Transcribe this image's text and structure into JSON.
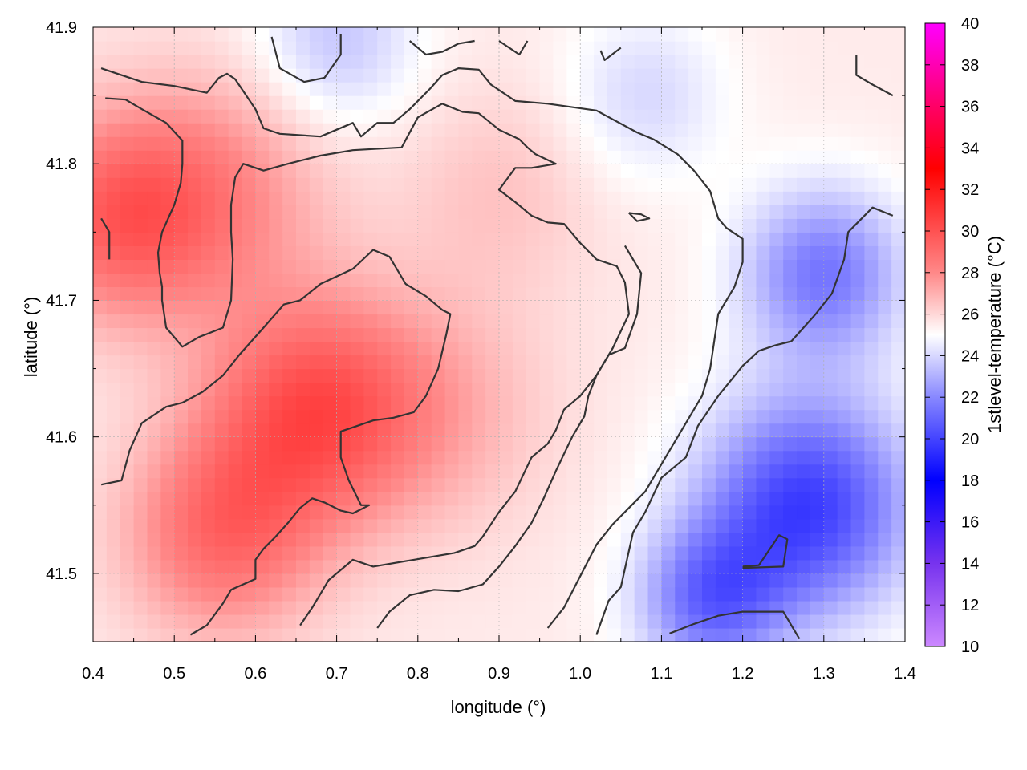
{
  "chart_data": {
    "type": "heatmap",
    "title": "",
    "xlabel": "longitude (°)",
    "ylabel": "latitude (°)",
    "colorbar_label": "1stlevel-temperature (°C)",
    "xlim": [
      0.4,
      1.4
    ],
    "ylim": [
      41.45,
      41.9
    ],
    "x_ticks": [
      0.4,
      0.5,
      0.6,
      0.7,
      0.8,
      0.9,
      1.0,
      1.1,
      1.2,
      1.3,
      1.4
    ],
    "x_tick_labels": [
      "0.4",
      "0.5",
      "0.6",
      "0.7",
      "0.8",
      "0.9",
      "1.0",
      "1.1",
      "1.2",
      "1.3",
      "1.4"
    ],
    "y_ticks": [
      41.5,
      41.6,
      41.7,
      41.8,
      41.9
    ],
    "y_tick_labels": [
      "41.5",
      "41.6",
      "41.7",
      "41.8",
      "41.9"
    ],
    "colorbar_range": [
      10,
      40
    ],
    "colorbar_ticks": [
      10,
      12,
      14,
      16,
      18,
      20,
      22,
      24,
      26,
      28,
      30,
      32,
      34,
      36,
      38,
      40
    ],
    "colorbar_tick_labels": [
      "10",
      "12",
      "14",
      "16",
      "18",
      "20",
      "22",
      "24",
      "26",
      "28",
      "30",
      "32",
      "34",
      "36",
      "38",
      "40"
    ],
    "colorscale": [
      {
        "v": 10,
        "color": "#cc88ff"
      },
      {
        "v": 14,
        "color": "#7733ee"
      },
      {
        "v": 18,
        "color": "#0000ff"
      },
      {
        "v": 22,
        "color": "#8888ff"
      },
      {
        "v": 25,
        "color": "#ffffff"
      },
      {
        "v": 28,
        "color": "#ff8888"
      },
      {
        "v": 33,
        "color": "#ff0000"
      },
      {
        "v": 36,
        "color": "#ff0066"
      },
      {
        "v": 40,
        "color": "#ff00ff"
      }
    ],
    "grid": true,
    "field_centers": [
      {
        "x": 0.67,
        "y": 41.62,
        "v": 29.8,
        "s": 0.13
      },
      {
        "x": 0.56,
        "y": 41.53,
        "v": 29.0,
        "s": 0.12
      },
      {
        "x": 0.43,
        "y": 41.76,
        "v": 29.0,
        "s": 0.12
      },
      {
        "x": 0.55,
        "y": 41.78,
        "v": 27.8,
        "s": 0.14
      },
      {
        "x": 0.82,
        "y": 41.62,
        "v": 27.0,
        "s": 0.14
      },
      {
        "x": 0.9,
        "y": 41.78,
        "v": 26.5,
        "s": 0.12
      },
      {
        "x": 1.28,
        "y": 41.55,
        "v": 19.8,
        "s": 0.13
      },
      {
        "x": 1.3,
        "y": 41.72,
        "v": 21.5,
        "s": 0.1
      },
      {
        "x": 1.16,
        "y": 41.48,
        "v": 21.5,
        "s": 0.09
      },
      {
        "x": 0.7,
        "y": 41.89,
        "v": 23.5,
        "s": 0.1
      },
      {
        "x": 1.08,
        "y": 41.85,
        "v": 24.0,
        "s": 0.1
      }
    ],
    "field_base": 25.5,
    "contours": [
      [
        [
          0.41,
          41.87
        ],
        [
          0.46,
          41.86
        ],
        [
          0.5,
          41.857
        ],
        [
          0.54,
          41.852
        ],
        [
          0.555,
          41.863
        ],
        [
          0.565,
          41.866
        ],
        [
          0.575,
          41.862
        ],
        [
          0.6,
          41.84
        ],
        [
          0.61,
          41.826
        ],
        [
          0.63,
          41.822
        ],
        [
          0.68,
          41.82
        ],
        [
          0.72,
          41.83
        ],
        [
          0.73,
          41.82
        ],
        [
          0.75,
          41.83
        ],
        [
          0.77,
          41.83
        ],
        [
          0.79,
          41.84
        ],
        [
          0.815,
          41.855
        ],
        [
          0.83,
          41.865
        ],
        [
          0.85,
          41.87
        ],
        [
          0.875,
          41.869
        ],
        [
          0.89,
          41.858
        ],
        [
          0.92,
          41.846
        ],
        [
          0.96,
          41.844
        ],
        [
          1.02,
          41.839
        ],
        [
          1.07,
          41.823
        ],
        [
          1.09,
          41.818
        ],
        [
          1.12,
          41.807
        ],
        [
          1.14,
          41.795
        ],
        [
          1.16,
          41.78
        ],
        [
          1.17,
          41.76
        ],
        [
          1.18,
          41.753
        ],
        [
          1.2,
          41.745
        ],
        [
          1.2,
          41.728
        ],
        [
          1.19,
          41.71
        ],
        [
          1.17,
          41.69
        ],
        [
          1.16,
          41.65
        ],
        [
          1.15,
          41.63
        ],
        [
          1.12,
          41.6
        ],
        [
          1.1,
          41.58
        ],
        [
          1.08,
          41.56
        ],
        [
          1.06,
          41.548
        ],
        [
          1.04,
          41.536
        ],
        [
          1.02,
          41.521
        ],
        [
          1.0,
          41.498
        ],
        [
          0.98,
          41.475
        ],
        [
          0.96,
          41.46
        ]
      ],
      [
        [
          0.415,
          41.848
        ],
        [
          0.44,
          41.847
        ],
        [
          0.46,
          41.84
        ],
        [
          0.49,
          41.83
        ],
        [
          0.51,
          41.817
        ],
        [
          0.51,
          41.8
        ],
        [
          0.508,
          41.786
        ],
        [
          0.5,
          41.77
        ],
        [
          0.485,
          41.75
        ],
        [
          0.48,
          41.735
        ],
        [
          0.482,
          41.72
        ],
        [
          0.485,
          41.71
        ],
        [
          0.485,
          41.7
        ],
        [
          0.49,
          41.68
        ],
        [
          0.51,
          41.666
        ],
        [
          0.53,
          41.673
        ],
        [
          0.56,
          41.68
        ],
        [
          0.57,
          41.7
        ],
        [
          0.572,
          41.73
        ],
        [
          0.57,
          41.75
        ],
        [
          0.57,
          41.77
        ],
        [
          0.575,
          41.79
        ],
        [
          0.585,
          41.8
        ],
        [
          0.61,
          41.795
        ],
        [
          0.64,
          41.8
        ],
        [
          0.68,
          41.806
        ],
        [
          0.72,
          41.81
        ],
        [
          0.78,
          41.812
        ],
        [
          0.8,
          41.834
        ],
        [
          0.83,
          41.844
        ],
        [
          0.855,
          41.838
        ],
        [
          0.875,
          41.837
        ],
        [
          0.9,
          41.825
        ],
        [
          0.925,
          41.818
        ],
        [
          0.935,
          41.812
        ],
        [
          0.945,
          41.807
        ],
        [
          0.97,
          41.8
        ],
        [
          0.94,
          41.797
        ],
        [
          0.92,
          41.797
        ],
        [
          0.9,
          41.781
        ],
        [
          0.92,
          41.772
        ],
        [
          0.94,
          41.762
        ],
        [
          0.96,
          41.757
        ],
        [
          0.98,
          41.756
        ],
        [
          1.0,
          41.742
        ],
        [
          1.02,
          41.73
        ],
        [
          1.045,
          41.725
        ],
        [
          1.055,
          41.713
        ],
        [
          1.06,
          41.69
        ],
        [
          1.04,
          41.665
        ],
        [
          1.02,
          41.645
        ],
        [
          1.01,
          41.63
        ],
        [
          1.005,
          41.615
        ],
        [
          0.99,
          41.6
        ],
        [
          0.97,
          41.575
        ],
        [
          0.955,
          41.555
        ],
        [
          0.94,
          41.537
        ],
        [
          0.92,
          41.52
        ],
        [
          0.9,
          41.505
        ],
        [
          0.88,
          41.492
        ],
        [
          0.85,
          41.487
        ],
        [
          0.82,
          41.488
        ],
        [
          0.79,
          41.484
        ],
        [
          0.765,
          41.472
        ],
        [
          0.75,
          41.46
        ]
      ],
      [
        [
          0.41,
          41.565
        ],
        [
          0.435,
          41.568
        ],
        [
          0.445,
          41.59
        ],
        [
          0.46,
          41.61
        ],
        [
          0.49,
          41.622
        ],
        [
          0.51,
          41.625
        ],
        [
          0.535,
          41.633
        ],
        [
          0.56,
          41.645
        ],
        [
          0.58,
          41.66
        ],
        [
          0.61,
          41.68
        ],
        [
          0.635,
          41.697
        ],
        [
          0.655,
          41.7
        ],
        [
          0.68,
          41.712
        ],
        [
          0.72,
          41.723
        ],
        [
          0.745,
          41.737
        ],
        [
          0.765,
          41.732
        ],
        [
          0.785,
          41.712
        ],
        [
          0.81,
          41.703
        ],
        [
          0.83,
          41.693
        ],
        [
          0.84,
          41.69
        ],
        [
          0.835,
          41.675
        ],
        [
          0.825,
          41.65
        ],
        [
          0.81,
          41.63
        ],
        [
          0.795,
          41.618
        ],
        [
          0.77,
          41.614
        ],
        [
          0.745,
          41.612
        ],
        [
          0.72,
          41.607
        ],
        [
          0.705,
          41.604
        ],
        [
          0.705,
          41.585
        ],
        [
          0.715,
          41.568
        ],
        [
          0.73,
          41.55
        ],
        [
          0.74,
          41.55
        ],
        [
          0.72,
          41.544
        ],
        [
          0.705,
          41.546
        ],
        [
          0.685,
          41.552
        ],
        [
          0.67,
          41.555
        ],
        [
          0.655,
          41.548
        ],
        [
          0.64,
          41.537
        ],
        [
          0.625,
          41.527
        ],
        [
          0.61,
          41.518
        ],
        [
          0.6,
          41.51
        ],
        [
          0.6,
          41.496
        ],
        [
          0.57,
          41.488
        ],
        [
          0.56,
          41.478
        ],
        [
          0.54,
          41.462
        ],
        [
          0.52,
          41.455
        ]
      ],
      [
        [
          0.655,
          41.462
        ],
        [
          0.67,
          41.475
        ],
        [
          0.69,
          41.495
        ],
        [
          0.72,
          41.51
        ],
        [
          0.745,
          41.505
        ],
        [
          0.795,
          41.51
        ],
        [
          0.845,
          41.515
        ],
        [
          0.87,
          41.52
        ],
        [
          0.88,
          41.527
        ],
        [
          0.9,
          41.545
        ],
        [
          0.92,
          41.56
        ],
        [
          0.94,
          41.585
        ],
        [
          0.96,
          41.595
        ],
        [
          0.97,
          41.605
        ],
        [
          0.98,
          41.62
        ],
        [
          1.0,
          41.63
        ],
        [
          1.02,
          41.645
        ],
        [
          1.035,
          41.66
        ],
        [
          1.055,
          41.665
        ],
        [
          1.07,
          41.69
        ],
        [
          1.075,
          41.72
        ],
        [
          1.055,
          41.74
        ]
      ],
      [
        [
          1.11,
          41.456
        ],
        [
          1.14,
          41.463
        ],
        [
          1.17,
          41.469
        ],
        [
          1.2,
          41.472
        ],
        [
          1.25,
          41.472
        ],
        [
          1.27,
          41.452
        ]
      ],
      [
        [
          1.2,
          41.504
        ],
        [
          1.25,
          41.505
        ],
        [
          1.255,
          41.525
        ],
        [
          1.245,
          41.528
        ],
        [
          1.22,
          41.506
        ],
        [
          1.2,
          41.505
        ]
      ],
      [
        [
          1.06,
          41.764
        ],
        [
          1.075,
          41.763
        ],
        [
          1.085,
          41.76
        ],
        [
          1.07,
          41.758
        ],
        [
          1.06,
          41.764
        ]
      ],
      [
        [
          1.02,
          41.455
        ],
        [
          1.035,
          41.48
        ],
        [
          1.05,
          41.49
        ],
        [
          1.065,
          41.53
        ],
        [
          1.08,
          41.545
        ],
        [
          1.1,
          41.57
        ],
        [
          1.13,
          41.585
        ],
        [
          1.145,
          41.608
        ],
        [
          1.17,
          41.63
        ],
        [
          1.2,
          41.652
        ],
        [
          1.22,
          41.663
        ],
        [
          1.24,
          41.667
        ],
        [
          1.26,
          41.67
        ],
        [
          1.29,
          41.69
        ],
        [
          1.31,
          41.705
        ],
        [
          1.325,
          41.73
        ],
        [
          1.33,
          41.75
        ],
        [
          1.36,
          41.768
        ],
        [
          1.385,
          41.762
        ]
      ],
      [
        [
          0.62,
          41.893
        ],
        [
          0.63,
          41.87
        ],
        [
          0.66,
          41.86
        ],
        [
          0.685,
          41.863
        ],
        [
          0.705,
          41.88
        ],
        [
          0.705,
          41.895
        ]
      ],
      [
        [
          0.79,
          41.89
        ],
        [
          0.81,
          41.88
        ],
        [
          0.83,
          41.882
        ],
        [
          0.85,
          41.888
        ],
        [
          0.87,
          41.89
        ]
      ],
      [
        [
          0.9,
          41.89
        ],
        [
          0.925,
          41.88
        ],
        [
          0.935,
          41.89
        ]
      ],
      [
        [
          1.025,
          41.883
        ],
        [
          1.03,
          41.876
        ],
        [
          1.05,
          41.885
        ]
      ],
      [
        [
          1.34,
          41.88
        ],
        [
          1.34,
          41.865
        ],
        [
          1.36,
          41.858
        ],
        [
          1.385,
          41.85
        ]
      ],
      [
        [
          0.41,
          41.76
        ],
        [
          0.42,
          41.75
        ],
        [
          0.42,
          41.73
        ]
      ]
    ]
  }
}
